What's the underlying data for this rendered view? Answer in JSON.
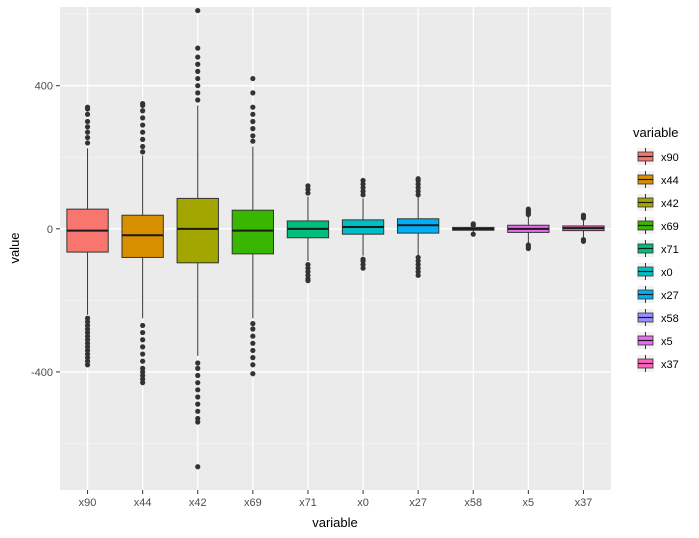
{
  "chart_data": {
    "type": "boxplot",
    "xlabel": "variable",
    "ylabel": "value",
    "ylim": [
      -730,
      620
    ],
    "y_ticks": [
      -400,
      0,
      400
    ],
    "grid": true,
    "legend": {
      "title": "variable",
      "position": "right"
    },
    "categories": [
      "x90",
      "x44",
      "x42",
      "x69",
      "x71",
      "x0",
      "x27",
      "x58",
      "x5",
      "x37"
    ],
    "series": [
      {
        "name": "x90",
        "color": "#F8766D",
        "min": -240,
        "q1": -65,
        "median": -5,
        "q3": 55,
        "max": 225,
        "outliers": [
          -380,
          -370,
          -360,
          -350,
          -340,
          -330,
          -320,
          -310,
          -300,
          -290,
          -280,
          -270,
          -260,
          -250,
          240,
          255,
          270,
          285,
          300,
          320,
          335,
          340
        ]
      },
      {
        "name": "x44",
        "color": "#D89000",
        "min": -250,
        "q1": -80,
        "median": -18,
        "q3": 38,
        "max": 205,
        "outliers": [
          -430,
          -420,
          -410,
          -400,
          -390,
          -370,
          -350,
          -330,
          -310,
          -290,
          -270,
          215,
          230,
          250,
          270,
          290,
          310,
          330,
          345,
          350
        ]
      },
      {
        "name": "x42",
        "color": "#A3A500",
        "min": -355,
        "q1": -95,
        "median": 0,
        "q3": 85,
        "max": 345,
        "outliers": [
          -665,
          -540,
          -530,
          -510,
          -490,
          -470,
          -450,
          -430,
          -410,
          -390,
          -375,
          360,
          380,
          400,
          420,
          440,
          460,
          480,
          505,
          610
        ]
      },
      {
        "name": "x69",
        "color": "#39B600",
        "min": -250,
        "q1": -70,
        "median": -5,
        "q3": 52,
        "max": 230,
        "outliers": [
          -405,
          -380,
          -360,
          -340,
          -320,
          -300,
          -280,
          -265,
          245,
          260,
          280,
          300,
          320,
          340,
          380,
          420
        ]
      },
      {
        "name": "x71",
        "color": "#00BF7D",
        "min": -90,
        "q1": -25,
        "median": 0,
        "q3": 22,
        "max": 90,
        "outliers": [
          -145,
          -140,
          -130,
          -120,
          -110,
          -100,
          100,
          110,
          120
        ]
      },
      {
        "name": "x0",
        "color": "#00BFC4",
        "min": -75,
        "q1": -15,
        "median": 5,
        "q3": 25,
        "max": 85,
        "outliers": [
          -110,
          -100,
          -90,
          -85,
          95,
          105,
          115,
          125,
          135
        ]
      },
      {
        "name": "x27",
        "color": "#00B0F6",
        "min": -75,
        "q1": -12,
        "median": 10,
        "q3": 28,
        "max": 90,
        "outliers": [
          -130,
          -120,
          -110,
          -100,
          -90,
          -80,
          95,
          105,
          115,
          125,
          135,
          140
        ]
      },
      {
        "name": "x58",
        "color": "#9590FF",
        "min": -12,
        "q1": -4,
        "median": 0,
        "q3": 4,
        "max": 12,
        "outliers": [
          -15,
          10,
          14
        ]
      },
      {
        "name": "x5",
        "color": "#E76BF3",
        "min": -40,
        "q1": -10,
        "median": 0,
        "q3": 10,
        "max": 35,
        "outliers": [
          -55,
          -50,
          -45,
          40,
          45,
          50,
          55
        ]
      },
      {
        "name": "x37",
        "color": "#FF62BC",
        "min": -25,
        "q1": -5,
        "median": 2,
        "q3": 8,
        "max": 25,
        "outliers": [
          -35,
          -30,
          30,
          35,
          38
        ]
      }
    ]
  }
}
